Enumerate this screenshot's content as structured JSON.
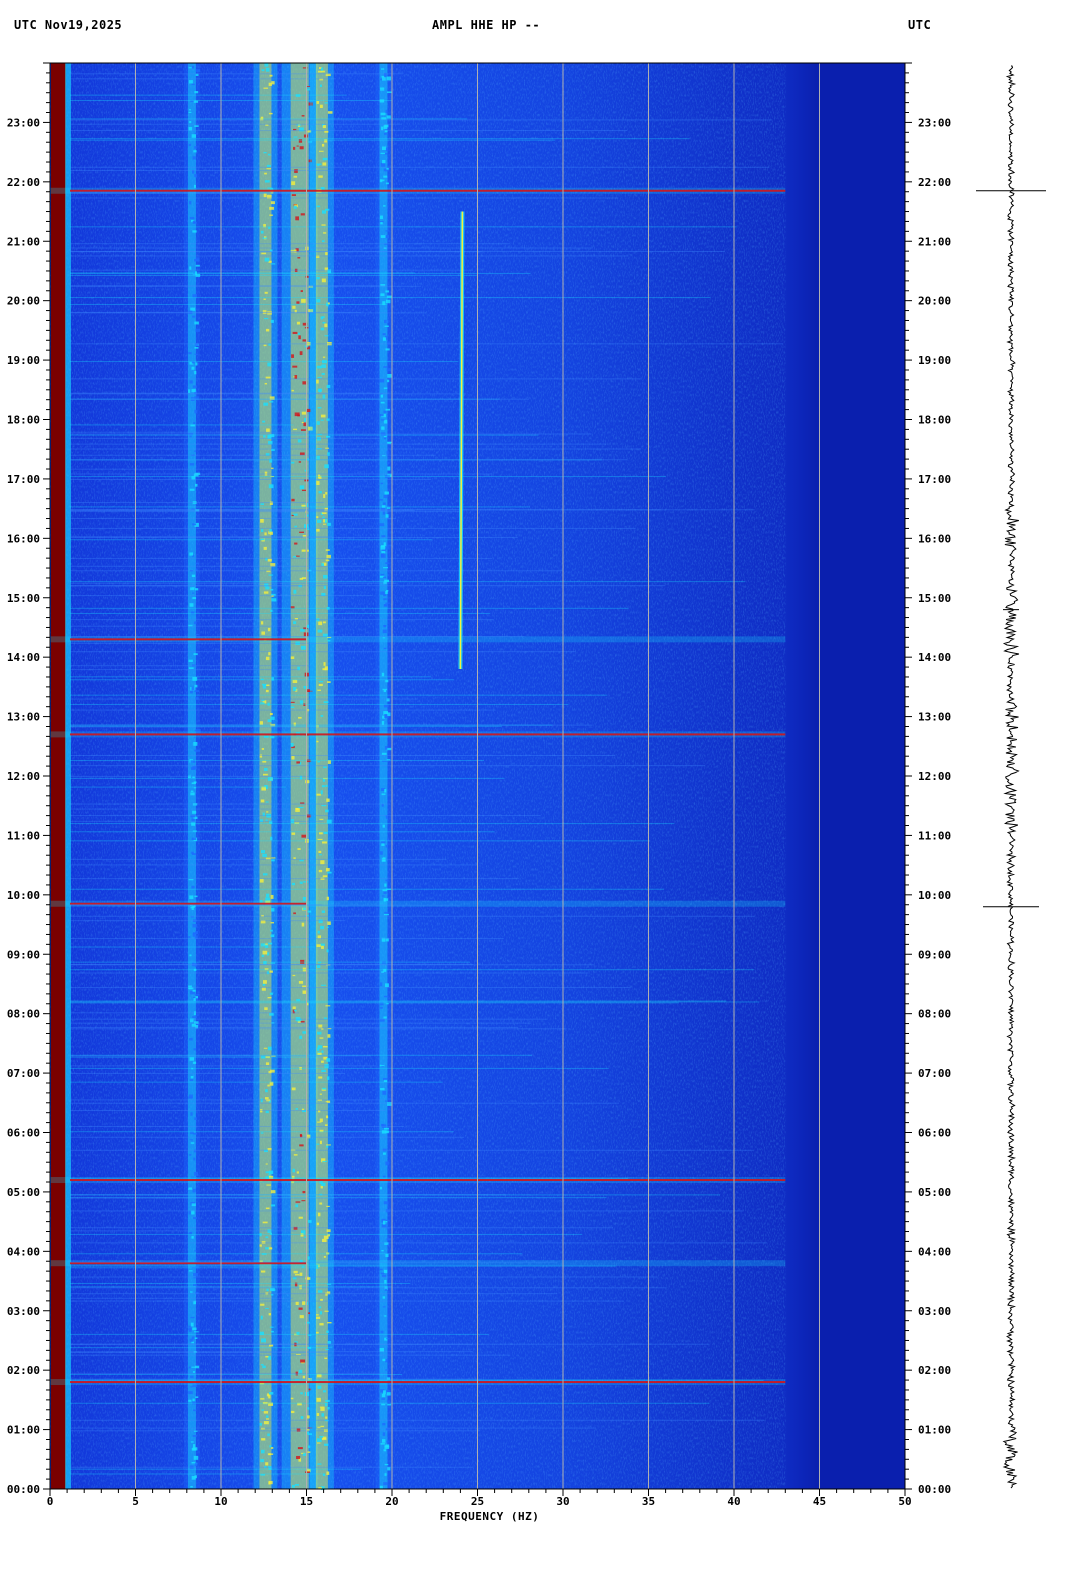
{
  "header": {
    "left": "UTC  Nov19,2025",
    "center": "AMPL HHE HP --",
    "right": "UTC"
  },
  "colors": {
    "background_low": "#0a1fb3",
    "mid": "#1e6cff",
    "cyan": "#19e0ff",
    "yellow": "#f5f03c",
    "red": "#d4141a",
    "dark_red": "#7a0000",
    "grid": "#b0b0b0"
  },
  "chart_data": {
    "type": "heatmap",
    "subtype": "spectrogram",
    "xlabel": "FREQUENCY (HZ)",
    "xlim": [
      0,
      50
    ],
    "x_ticks": [
      0,
      5,
      10,
      15,
      20,
      25,
      30,
      35,
      40,
      45,
      50
    ],
    "ylim_hours": [
      0,
      24
    ],
    "y_tick_labels": [
      "00:00",
      "01:00",
      "02:00",
      "03:00",
      "04:00",
      "05:00",
      "06:00",
      "07:00",
      "08:00",
      "09:00",
      "10:00",
      "11:00",
      "12:00",
      "13:00",
      "14:00",
      "15:00",
      "16:00",
      "17:00",
      "18:00",
      "19:00",
      "20:00",
      "21:00",
      "22:00",
      "23:00"
    ],
    "strong_bands_hz": [
      {
        "freq": 0.8,
        "intensity": "very high"
      },
      {
        "freq": 8.3,
        "intensity": "moderate"
      },
      {
        "freq": 12.6,
        "intensity": "high"
      },
      {
        "freq": 14.6,
        "intensity": "very high"
      },
      {
        "freq": 15.9,
        "intensity": "high"
      },
      {
        "freq": 19.5,
        "intensity": "moderate"
      }
    ],
    "vertical_line_signal": {
      "freq": 24.0,
      "start_hour": 13.8,
      "end_hour": 21.5
    },
    "horizontal_events_hours": [
      1.8,
      3.8,
      5.2,
      9.85,
      12.7,
      14.3,
      21.85
    ],
    "noise_rolloff_hz": 43,
    "trace_spikes_hours": [
      9.8,
      14.8,
      21.85
    ]
  }
}
